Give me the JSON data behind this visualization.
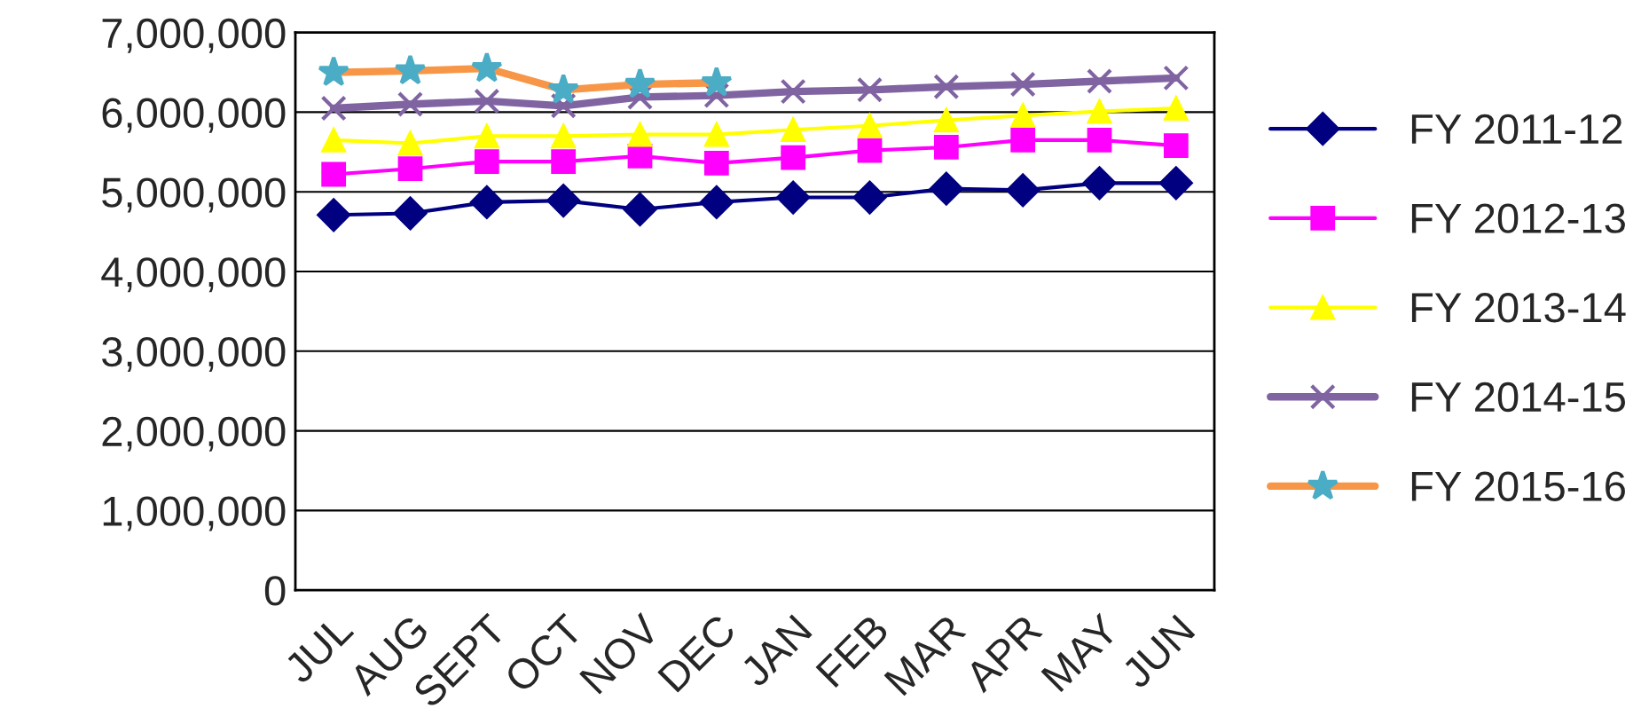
{
  "chart_data": {
    "type": "line",
    "categories": [
      "JUL",
      "AUG",
      "SEPT",
      "OCT",
      "NOV",
      "DEC",
      "JAN",
      "FEB",
      "MAR",
      "APR",
      "MAY",
      "JUN"
    ],
    "series": [
      {
        "name": "FY 2011-12",
        "color": "#000080",
        "marker": "diamond",
        "values": [
          4710000,
          4730000,
          4870000,
          4890000,
          4780000,
          4870000,
          4930000,
          4930000,
          5040000,
          5020000,
          5110000,
          5110000
        ]
      },
      {
        "name": "FY 2012-13",
        "color": "#ff00ff",
        "marker": "square",
        "values": [
          5220000,
          5290000,
          5380000,
          5380000,
          5450000,
          5360000,
          5430000,
          5520000,
          5560000,
          5650000,
          5650000,
          5580000
        ]
      },
      {
        "name": "FY 2013-14",
        "color": "#ffff00",
        "marker": "triangle",
        "values": [
          5650000,
          5610000,
          5700000,
          5700000,
          5720000,
          5720000,
          5780000,
          5830000,
          5900000,
          5960000,
          6010000,
          6050000
        ]
      },
      {
        "name": "FY 2014-15",
        "color": "#8064a2",
        "marker": "cross",
        "values": [
          6050000,
          6100000,
          6140000,
          6080000,
          6190000,
          6210000,
          6260000,
          6280000,
          6320000,
          6350000,
          6390000,
          6430000
        ]
      },
      {
        "name": "FY 2015-16",
        "color": "#f79646",
        "marker": "star",
        "values": [
          6500000,
          6520000,
          6550000,
          6280000,
          6350000,
          6370000,
          null,
          null,
          null,
          null,
          null,
          null
        ]
      }
    ],
    "ylim": [
      0,
      7000000
    ],
    "yticks": [
      {
        "value": 0,
        "label": "0"
      },
      {
        "value": 1000000,
        "label": "1,000,000"
      },
      {
        "value": 2000000,
        "label": "2,000,000"
      },
      {
        "value": 3000000,
        "label": "3,000,000"
      },
      {
        "value": 4000000,
        "label": "4,000,000"
      },
      {
        "value": 5000000,
        "label": "5,000,000"
      },
      {
        "value": 6000000,
        "label": "6,000,000"
      },
      {
        "value": 7000000,
        "label": "7,000,000"
      }
    ],
    "grid": "y",
    "legend": "right"
  }
}
